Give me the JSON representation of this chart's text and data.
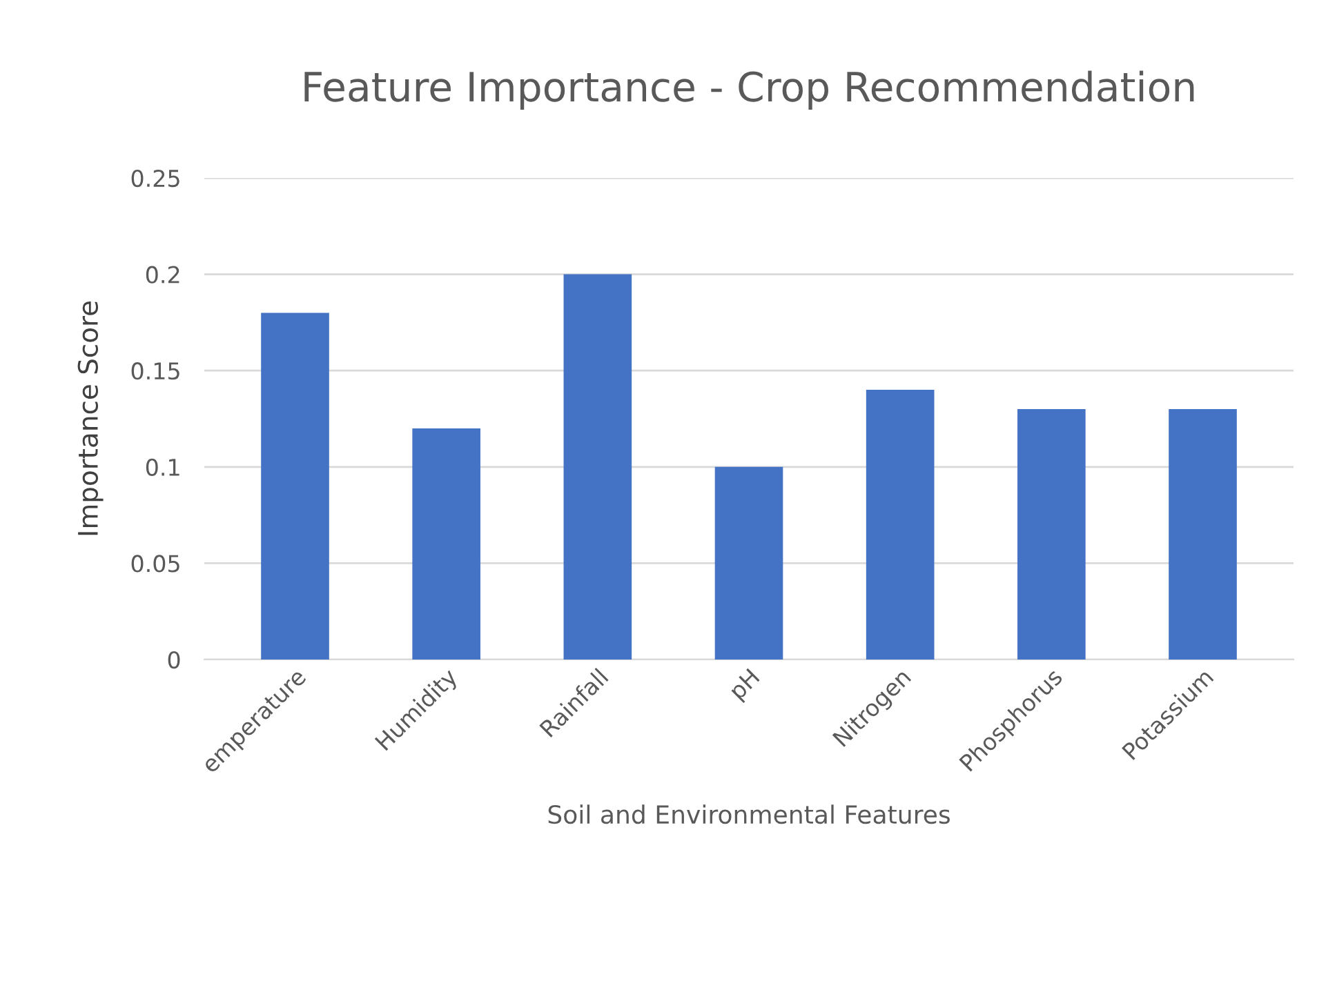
{
  "chart_data": {
    "type": "bar",
    "title": "Feature Importance - Crop Recommendation",
    "xlabel": "Soil and Environmental Features",
    "ylabel": "Importance Score",
    "categories": [
      "emperature",
      "Humidity",
      "Rainfall",
      "pH",
      "Nitrogen",
      "Phosphorus",
      "Potassium"
    ],
    "values": [
      0.18,
      0.12,
      0.2,
      0.1,
      0.14,
      0.13,
      0.13
    ],
    "color": "#4472c4",
    "ylim": [
      0,
      0.25
    ],
    "yticks": [
      0,
      {
        "value": 0.05,
        "label": "0.05"
      },
      {
        "value": 0.1,
        "label": "0.1"
      },
      {
        "value": 0.15,
        "label": "0.15"
      },
      {
        "value": 0.2,
        "label": "0.2"
      },
      {
        "value": 0.25,
        "label": "0.25"
      }
    ],
    "grid": "y"
  }
}
